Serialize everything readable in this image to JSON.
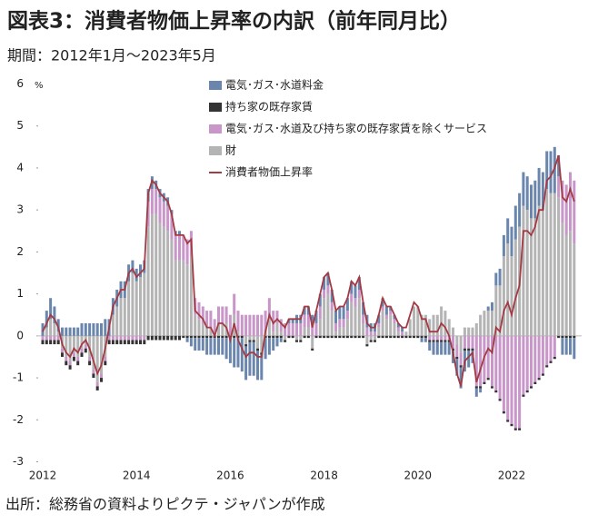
{
  "chart_data": {
    "type": "bar",
    "title": "図表3：消費者物価上昇率の内訳（前年同月比）",
    "subtitle": "期間：2012年1月～2023年5月",
    "source": "出所：総務省の資料よりピクテ・ジャパンが作成",
    "ylabel": "%",
    "ylim": [
      -3,
      6
    ],
    "yticks": [
      -3,
      -2,
      -1,
      0,
      1,
      2,
      3,
      4,
      5,
      6
    ],
    "legend": "top-left",
    "categories": [
      "2012",
      null,
      null,
      null,
      null,
      null,
      null,
      null,
      null,
      null,
      null,
      null,
      null,
      null,
      null,
      null,
      null,
      null,
      null,
      null,
      null,
      null,
      null,
      null,
      "2014",
      null,
      null,
      null,
      null,
      null,
      null,
      null,
      null,
      null,
      null,
      null,
      null,
      null,
      null,
      null,
      null,
      null,
      null,
      null,
      null,
      null,
      null,
      null,
      "2016",
      null,
      null,
      null,
      null,
      null,
      null,
      null,
      null,
      null,
      null,
      null,
      null,
      null,
      null,
      null,
      null,
      null,
      null,
      null,
      null,
      null,
      null,
      null,
      "2018",
      null,
      null,
      null,
      null,
      null,
      null,
      null,
      null,
      null,
      null,
      null,
      null,
      null,
      null,
      null,
      null,
      null,
      null,
      null,
      null,
      null,
      null,
      null,
      "2020",
      null,
      null,
      null,
      null,
      null,
      null,
      null,
      null,
      null,
      null,
      null,
      null,
      null,
      null,
      null,
      null,
      null,
      null,
      null,
      null,
      null,
      null,
      null,
      "2022",
      null,
      null,
      null,
      null,
      null,
      null,
      null,
      null,
      null,
      null,
      null,
      null,
      null,
      null,
      null,
      null
    ],
    "series": [
      {
        "name": "電気･ガス･水道料金",
        "type": "bar",
        "color": "#6b86ad",
        "values": [
          0.3,
          0.4,
          0.5,
          0.4,
          0.3,
          0.2,
          0.2,
          0.2,
          0.2,
          0.2,
          0.3,
          0.3,
          0.3,
          0.3,
          0.3,
          0.3,
          0.4,
          0.4,
          0.4,
          0.4,
          0.4,
          0.4,
          0.4,
          0.3,
          0.3,
          0.3,
          0.3,
          0.3,
          0.3,
          0.2,
          0.2,
          0.2,
          0.2,
          0.1,
          0.1,
          0.1,
          0.0,
          -0.1,
          -0.2,
          -0.3,
          -0.3,
          -0.3,
          -0.4,
          -0.4,
          -0.4,
          -0.4,
          -0.4,
          -0.5,
          -0.6,
          -0.7,
          -0.7,
          -0.8,
          -0.8,
          -0.8,
          -0.8,
          -0.7,
          -0.6,
          -0.5,
          -0.4,
          -0.3,
          -0.2,
          -0.1,
          0.0,
          0.1,
          0.1,
          0.2,
          0.2,
          0.2,
          0.2,
          0.2,
          0.3,
          0.3,
          0.3,
          0.3,
          0.3,
          0.3,
          0.3,
          0.3,
          0.3,
          0.3,
          0.3,
          0.3,
          0.3,
          0.3,
          0.2,
          0.2,
          0.2,
          0.2,
          0.2,
          0.1,
          0.1,
          0.1,
          0.1,
          0.0,
          0.0,
          0.0,
          0.0,
          -0.1,
          -0.1,
          -0.2,
          -0.3,
          -0.3,
          -0.3,
          -0.3,
          -0.3,
          -0.3,
          -0.4,
          -0.5,
          -0.5,
          -0.4,
          -0.3,
          -0.2,
          -0.1,
          0.0,
          0.1,
          0.2,
          0.3,
          0.4,
          0.5,
          0.6,
          0.7,
          0.8,
          0.8,
          0.8,
          0.8,
          0.8,
          0.9,
          0.9,
          0.9,
          0.9,
          1.0,
          1.1,
          0.5,
          -0.4,
          -0.4,
          -0.4,
          -0.5
        ]
      },
      {
        "name": "持ち家の既存家賃",
        "type": "bar",
        "color": "#333333",
        "values": [
          -0.1,
          -0.1,
          -0.1,
          -0.1,
          -0.1,
          -0.1,
          -0.1,
          -0.1,
          -0.1,
          -0.1,
          -0.1,
          -0.1,
          -0.1,
          -0.1,
          -0.1,
          -0.1,
          -0.1,
          -0.1,
          -0.1,
          -0.1,
          -0.1,
          -0.1,
          -0.1,
          -0.1,
          -0.1,
          -0.1,
          -0.1,
          -0.1,
          -0.1,
          -0.1,
          -0.1,
          -0.1,
          -0.1,
          -0.1,
          -0.1,
          -0.1,
          -0.05,
          -0.05,
          -0.05,
          -0.05,
          -0.05,
          -0.05,
          -0.05,
          -0.05,
          -0.05,
          -0.05,
          -0.05,
          -0.05,
          -0.05,
          -0.05,
          -0.05,
          -0.05,
          -0.05,
          -0.05,
          -0.05,
          -0.05,
          -0.05,
          -0.05,
          -0.05,
          -0.05,
          -0.05,
          -0.05,
          -0.05,
          -0.05,
          -0.05,
          -0.05,
          -0.05,
          -0.05,
          -0.05,
          -0.05,
          -0.05,
          -0.05,
          -0.05,
          -0.05,
          -0.05,
          -0.05,
          -0.05,
          -0.05,
          -0.05,
          -0.05,
          -0.05,
          -0.05,
          -0.05,
          -0.05,
          -0.05,
          -0.05,
          -0.05,
          -0.05,
          -0.05,
          -0.05,
          -0.05,
          -0.05,
          -0.05,
          -0.05,
          -0.05,
          -0.05,
          -0.05,
          -0.05,
          -0.05,
          -0.05,
          -0.05,
          -0.05,
          -0.05,
          -0.05,
          -0.05,
          -0.05,
          -0.05,
          -0.05,
          -0.05,
          -0.05,
          -0.05,
          -0.05,
          -0.05,
          -0.05,
          -0.05,
          -0.05,
          -0.05,
          -0.05,
          -0.05,
          -0.05,
          -0.05,
          -0.05,
          -0.05,
          -0.05,
          -0.05,
          -0.05,
          -0.05,
          -0.05,
          -0.05,
          -0.05,
          -0.05,
          -0.05,
          -0.05,
          -0.05,
          -0.05,
          -0.05,
          -0.05
        ]
      },
      {
        "name": "電気･ガス･水道及び持ち家の既存家賃を除くサービス",
        "type": "bar",
        "color": "#c896c8",
        "values": [
          -0.1,
          -0.1,
          -0.1,
          -0.1,
          -0.1,
          -0.1,
          -0.1,
          -0.1,
          -0.1,
          -0.1,
          -0.1,
          -0.1,
          -0.1,
          -0.1,
          -0.1,
          -0.1,
          -0.1,
          -0.1,
          -0.1,
          -0.1,
          -0.1,
          -0.1,
          -0.1,
          -0.1,
          -0.1,
          -0.1,
          -0.1,
          0.6,
          0.6,
          0.6,
          0.6,
          0.6,
          0.6,
          0.6,
          0.6,
          0.6,
          0.6,
          0.6,
          0.6,
          0.4,
          0.4,
          0.4,
          0.4,
          0.4,
          0.4,
          0.4,
          0.4,
          0.4,
          0.5,
          0.5,
          0.5,
          0.5,
          0.5,
          0.5,
          0.5,
          0.5,
          0.5,
          0.5,
          0.5,
          0.5,
          0.3,
          0.3,
          0.3,
          0.3,
          0.3,
          0.3,
          0.3,
          0.3,
          0.3,
          0.3,
          0.3,
          0.3,
          0.2,
          0.2,
          0.2,
          0.2,
          0.2,
          0.2,
          0.2,
          0.2,
          0.2,
          0.2,
          0.2,
          0.2,
          0.1,
          0.1,
          0.1,
          0.1,
          0.1,
          0.1,
          0.1,
          0.1,
          0.1,
          0.0,
          0.0,
          0.0,
          0.0,
          0.0,
          0.0,
          -0.1,
          -0.1,
          -0.1,
          -0.1,
          -0.1,
          -0.1,
          -0.3,
          -0.3,
          -0.3,
          -0.3,
          -0.3,
          -0.3,
          -1.2,
          -1.2,
          -1.1,
          -1.0,
          -1.2,
          -1.3,
          -1.5,
          -1.8,
          -2.0,
          -2.1,
          -2.2,
          -2.2,
          -1.4,
          -1.3,
          -1.2,
          -1.1,
          -1.0,
          -0.9,
          -0.7,
          -0.6,
          -0.5,
          0.5,
          1.0,
          1.2,
          1.4,
          1.5
        ]
      },
      {
        "name": "財",
        "type": "bar",
        "color": "#b4b4b4",
        "values": [
          0.0,
          0.2,
          0.4,
          0.3,
          0.1,
          -0.3,
          -0.5,
          -0.6,
          -0.4,
          -0.5,
          -0.3,
          -0.2,
          -0.5,
          -0.8,
          -1.1,
          -0.9,
          -0.5,
          0.0,
          0.5,
          0.7,
          0.9,
          0.9,
          1.3,
          1.5,
          1.3,
          1.4,
          1.5,
          2.6,
          2.9,
          2.9,
          2.7,
          2.6,
          2.5,
          2.3,
          1.8,
          1.8,
          1.8,
          1.7,
          1.9,
          0.5,
          0.4,
          0.3,
          0.2,
          0.2,
          0.0,
          0.3,
          0.3,
          0.3,
          0.0,
          0.5,
          0.1,
          0.0,
          -0.2,
          -0.1,
          -0.1,
          -0.3,
          -0.4,
          0.1,
          0.4,
          0.1,
          0.3,
          0.1,
          -0.1,
          0.0,
          0.0,
          -0.1,
          -0.1,
          0.2,
          0.2,
          -0.3,
          0.0,
          0.4,
          0.9,
          1.0,
          0.6,
          0.1,
          0.2,
          0.2,
          0.4,
          0.8,
          0.7,
          0.9,
          0.3,
          -0.2,
          -0.1,
          -0.1,
          0.2,
          0.6,
          0.4,
          0.5,
          0.3,
          0.1,
          0.0,
          0.1,
          0.4,
          0.7,
          0.7,
          0.5,
          0.5,
          0.4,
          0.5,
          0.5,
          0.7,
          0.6,
          0.4,
          0.2,
          -0.2,
          -0.4,
          0.2,
          0.2,
          0.2,
          0.3,
          0.5,
          0.6,
          0.6,
          0.6,
          1.2,
          1.2,
          1.9,
          2.2,
          1.9,
          2.3,
          2.6,
          3.1,
          3.0,
          2.8,
          2.8,
          3.1,
          3.0,
          3.5,
          3.4,
          3.4,
          3.3,
          2.7,
          2.4,
          2.5,
          2.2
        ]
      },
      {
        "name": "消費者物価上昇率",
        "type": "line",
        "color": "#a33a44",
        "values": [
          0.1,
          0.3,
          0.5,
          0.4,
          0.2,
          -0.2,
          -0.4,
          -0.5,
          -0.3,
          -0.4,
          -0.2,
          -0.1,
          -0.3,
          -0.6,
          -0.9,
          -0.7,
          -0.3,
          0.2,
          0.7,
          0.9,
          1.1,
          1.1,
          1.5,
          1.6,
          1.4,
          1.5,
          1.6,
          3.4,
          3.7,
          3.6,
          3.4,
          3.3,
          3.2,
          2.9,
          2.4,
          2.4,
          2.4,
          2.2,
          2.3,
          0.6,
          0.5,
          0.4,
          0.2,
          0.2,
          0.0,
          0.3,
          0.3,
          0.2,
          -0.1,
          0.3,
          -0.1,
          -0.3,
          -0.5,
          -0.4,
          -0.4,
          -0.5,
          -0.5,
          0.1,
          0.5,
          0.3,
          0.4,
          0.3,
          0.2,
          0.4,
          0.4,
          0.4,
          0.4,
          0.7,
          0.7,
          0.2,
          0.6,
          1.0,
          1.4,
          1.5,
          1.1,
          0.6,
          0.7,
          0.7,
          0.9,
          1.3,
          1.2,
          1.4,
          0.8,
          0.3,
          0.2,
          0.2,
          0.5,
          0.9,
          0.7,
          0.7,
          0.5,
          0.3,
          0.2,
          0.2,
          0.5,
          0.8,
          0.7,
          0.4,
          0.4,
          0.1,
          0.1,
          0.1,
          0.3,
          0.2,
          0.0,
          -0.4,
          -0.9,
          -1.2,
          -0.6,
          -0.5,
          -0.4,
          -1.1,
          -0.8,
          -0.5,
          -0.3,
          -0.4,
          0.2,
          0.1,
          0.6,
          0.8,
          0.5,
          0.9,
          1.2,
          2.5,
          2.5,
          2.4,
          2.6,
          3.0,
          3.0,
          3.7,
          3.8,
          4.0,
          4.3,
          3.3,
          3.2,
          3.5,
          3.2
        ]
      }
    ]
  }
}
